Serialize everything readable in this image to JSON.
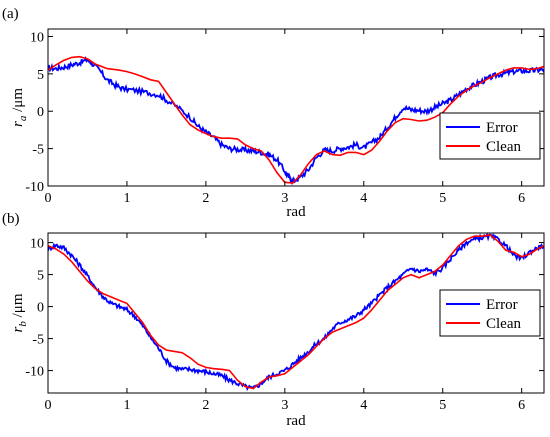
{
  "chart_data": [
    {
      "type": "line",
      "panel_label": "(a)",
      "xlabel": "rad",
      "ylabel_main": "r",
      "ylabel_sub": "a",
      "ylabel_unit": " /μm",
      "xlim": [
        0,
        6.283
      ],
      "ylim": [
        -10,
        11
      ],
      "xticks": [
        0,
        1,
        2,
        3,
        4,
        5,
        6
      ],
      "yticks": [
        -10,
        -5,
        0,
        5,
        10
      ],
      "legend_position": "right-middle",
      "series": [
        {
          "name": "Error",
          "color": "#0000ff",
          "x": [
            0,
            0.1,
            0.2,
            0.3,
            0.4,
            0.5,
            0.55,
            0.65,
            0.75,
            0.85,
            0.95,
            1.1,
            1.25,
            1.4,
            1.5,
            1.65,
            1.8,
            1.9,
            2.0,
            2.1,
            2.2,
            2.3,
            2.4,
            2.5,
            2.6,
            2.7,
            2.8,
            2.9,
            3.0,
            3.05,
            3.1,
            3.2,
            3.3,
            3.4,
            3.5,
            3.6,
            3.7,
            3.8,
            3.9,
            4.0,
            4.1,
            4.2,
            4.3,
            4.4,
            4.5,
            4.6,
            4.7,
            4.8,
            4.9,
            5.0,
            5.1,
            5.2,
            5.3,
            5.4,
            5.5,
            5.6,
            5.7,
            5.8,
            5.9,
            6.0,
            6.1,
            6.2,
            6.283
          ],
          "y": [
            5.8,
            5.7,
            5.9,
            6.2,
            6.5,
            6.9,
            6.5,
            5.5,
            4.2,
            3.5,
            3.0,
            2.8,
            2.5,
            2.2,
            1.5,
            0.5,
            -0.8,
            -2.0,
            -2.8,
            -3.5,
            -4.5,
            -5.0,
            -5.1,
            -5.2,
            -5.3,
            -5.5,
            -5.8,
            -6.5,
            -8.0,
            -8.8,
            -9.4,
            -8.8,
            -7.8,
            -6.2,
            -5.2,
            -5.3,
            -5.0,
            -4.8,
            -4.5,
            -4.9,
            -4.2,
            -3.5,
            -2.2,
            -0.8,
            0.5,
            0.2,
            0.1,
            0.0,
            0.5,
            1.0,
            1.5,
            2.2,
            3.0,
            3.5,
            4.0,
            4.5,
            4.9,
            5.1,
            5.3,
            5.4,
            5.4,
            5.5,
            5.6
          ]
        },
        {
          "name": "Clean",
          "color": "#ff0000",
          "x": [
            0,
            0.1,
            0.2,
            0.3,
            0.4,
            0.5,
            0.6,
            0.75,
            0.9,
            1.0,
            1.1,
            1.2,
            1.3,
            1.4,
            1.5,
            1.6,
            1.7,
            1.8,
            1.9,
            2.0,
            2.1,
            2.2,
            2.3,
            2.4,
            2.5,
            2.6,
            2.7,
            2.8,
            2.9,
            3.0,
            3.1,
            3.2,
            3.3,
            3.4,
            3.5,
            3.6,
            3.7,
            3.8,
            3.9,
            4.0,
            4.1,
            4.2,
            4.3,
            4.4,
            4.5,
            4.6,
            4.7,
            4.8,
            4.9,
            5.0,
            5.1,
            5.2,
            5.3,
            5.4,
            5.5,
            5.6,
            5.7,
            5.8,
            5.9,
            6.0,
            6.1,
            6.2,
            6.283
          ],
          "y": [
            5.5,
            6.2,
            6.8,
            7.2,
            7.3,
            7.0,
            6.3,
            5.7,
            5.5,
            5.3,
            5.0,
            4.6,
            4.2,
            4.0,
            2.5,
            1.0,
            -0.5,
            -1.8,
            -2.5,
            -3.0,
            -3.4,
            -3.6,
            -3.6,
            -3.7,
            -4.5,
            -5.0,
            -5.3,
            -6.5,
            -8.2,
            -9.5,
            -9.6,
            -8.5,
            -7.0,
            -5.8,
            -5.3,
            -5.8,
            -5.9,
            -5.5,
            -5.5,
            -5.8,
            -5.2,
            -4.0,
            -2.6,
            -1.5,
            -1.0,
            -1.1,
            -1.3,
            -1.2,
            -0.8,
            -0.2,
            1.0,
            2.0,
            2.8,
            3.4,
            3.9,
            4.5,
            5.0,
            5.5,
            5.8,
            5.8,
            5.6,
            5.7,
            6.0
          ]
        }
      ]
    },
    {
      "type": "line",
      "panel_label": "(b)",
      "xlabel": "rad",
      "ylabel_main": "r",
      "ylabel_sub": "b",
      "ylabel_unit": " /μm",
      "xlim": [
        0,
        6.283
      ],
      "ylim": [
        -13.5,
        11.5
      ],
      "xticks": [
        0,
        1,
        2,
        3,
        4,
        5,
        6
      ],
      "yticks": [
        -10,
        -5,
        0,
        5,
        10
      ],
      "legend_position": "right-middle",
      "series": [
        {
          "name": "Error",
          "color": "#0000ff",
          "x": [
            0,
            0.1,
            0.2,
            0.3,
            0.4,
            0.5,
            0.6,
            0.7,
            0.8,
            0.9,
            1.0,
            1.1,
            1.2,
            1.3,
            1.4,
            1.5,
            1.6,
            1.7,
            1.8,
            1.9,
            2.0,
            2.1,
            2.2,
            2.3,
            2.4,
            2.5,
            2.6,
            2.7,
            2.8,
            2.9,
            3.0,
            3.1,
            3.2,
            3.3,
            3.4,
            3.5,
            3.6,
            3.7,
            3.8,
            3.9,
            4.0,
            4.1,
            4.2,
            4.3,
            4.4,
            4.5,
            4.6,
            4.7,
            4.8,
            4.9,
            5.0,
            5.1,
            5.2,
            5.3,
            5.4,
            5.5,
            5.6,
            5.7,
            5.8,
            5.9,
            6.0,
            6.1,
            6.2,
            6.283
          ],
          "y": [
            9.0,
            9.6,
            9.2,
            8.0,
            6.5,
            4.8,
            3.0,
            1.5,
            0.5,
            0.0,
            -0.5,
            -1.5,
            -3.0,
            -4.8,
            -6.5,
            -8.5,
            -9.5,
            -9.8,
            -9.8,
            -10.0,
            -10.2,
            -10.5,
            -10.8,
            -11.5,
            -12.0,
            -12.5,
            -12.8,
            -12.0,
            -11.0,
            -10.5,
            -10.0,
            -9.0,
            -8.0,
            -7.0,
            -5.8,
            -5.0,
            -3.5,
            -2.5,
            -2.0,
            -1.5,
            -0.5,
            0.5,
            1.8,
            3.0,
            4.0,
            5.0,
            6.0,
            5.5,
            5.8,
            5.2,
            6.0,
            7.5,
            8.8,
            10.0,
            10.5,
            10.8,
            11.0,
            10.5,
            9.5,
            8.0,
            7.5,
            8.5,
            9.2,
            9.5
          ]
        },
        {
          "name": "Clean",
          "color": "#ff0000",
          "x": [
            0,
            0.1,
            0.2,
            0.3,
            0.4,
            0.5,
            0.6,
            0.7,
            0.8,
            0.9,
            1.0,
            1.1,
            1.2,
            1.3,
            1.4,
            1.5,
            1.6,
            1.7,
            1.8,
            1.9,
            2.0,
            2.1,
            2.2,
            2.3,
            2.4,
            2.5,
            2.6,
            2.7,
            2.8,
            2.9,
            3.0,
            3.1,
            3.2,
            3.3,
            3.4,
            3.5,
            3.6,
            3.7,
            3.8,
            3.9,
            4.0,
            4.1,
            4.2,
            4.3,
            4.4,
            4.5,
            4.6,
            4.7,
            4.8,
            4.9,
            5.0,
            5.1,
            5.2,
            5.3,
            5.4,
            5.5,
            5.6,
            5.7,
            5.8,
            5.9,
            6.0,
            6.1,
            6.2,
            6.283
          ],
          "y": [
            9.5,
            9.0,
            8.2,
            7.0,
            5.5,
            4.0,
            2.8,
            2.0,
            1.5,
            1.0,
            0.5,
            -1.0,
            -2.5,
            -4.5,
            -6.0,
            -6.8,
            -7.0,
            -7.2,
            -8.0,
            -9.0,
            -9.5,
            -9.7,
            -9.8,
            -10.0,
            -11.5,
            -12.5,
            -12.8,
            -11.8,
            -11.0,
            -10.8,
            -10.5,
            -9.5,
            -8.5,
            -7.5,
            -6.2,
            -5.0,
            -4.0,
            -3.5,
            -3.0,
            -2.5,
            -1.8,
            -0.5,
            1.0,
            2.5,
            3.5,
            4.5,
            5.0,
            4.5,
            5.0,
            5.5,
            6.5,
            8.0,
            9.5,
            10.5,
            11.0,
            11.0,
            11.2,
            10.2,
            8.8,
            8.5,
            7.8,
            8.2,
            9.0,
            9.5
          ]
        }
      ]
    }
  ]
}
